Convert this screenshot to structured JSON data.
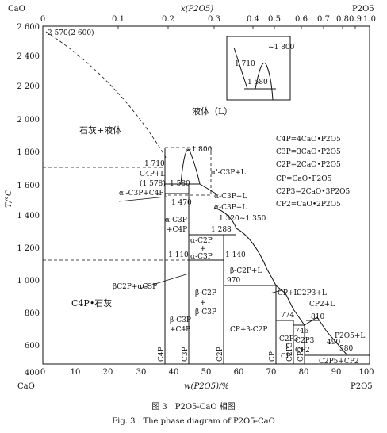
{
  "top_axis": {
    "label": "x(P2O5)",
    "left_label": "CaO",
    "right_label": "P2O5",
    "ticks": [
      "0",
      "0.1",
      "0.2",
      "0.3",
      "0.4",
      "0.5",
      "0.6",
      "0.7",
      "0.8",
      "0.9",
      "1.0"
    ]
  },
  "left_axis": {
    "label": "T/°C",
    "ticks": [
      "2 600",
      "2 400",
      "2 200",
      "2 000",
      "1 800",
      "1 600",
      "1 400",
      "1 200",
      "1 000",
      "800",
      "600",
      "400"
    ]
  },
  "bottom_axis": {
    "label": "w(P2O5)/%",
    "left_label": "CaO",
    "right_label": "P2O5",
    "ticks": [
      "0",
      "10",
      "20",
      "30",
      "40",
      "50",
      "60",
      "70",
      "80",
      "90",
      "100"
    ]
  },
  "labels": {
    "melt_point": "2 570(2 600)",
    "lime_liquid": "石灰+液体",
    "liquid": "液体（L）",
    "t1710": "1 710",
    "c4p_l": "C4P+L",
    "t1578": "(1 578)",
    "t1580": "1 580",
    "alpha_c3p_c4p": "α'-C3P+C4P",
    "t1470": "1 470",
    "t1800": "~1 800",
    "alpha_c3p_l1": "α'-C3P+L",
    "alpha_c3p_l2": "α-C3P+L",
    "alpha_c3p_l3": "α-C3P+L",
    "t1320": "1 320",
    "t1350": "~1 350",
    "t1288": "1 288",
    "alpha_c3p_c4p2": "α-C3P",
    "c4p_plus": "+C4P",
    "alpha_c2p": "α-C2P",
    "plus": "+",
    "alpha_c3p_b": "α-C3P",
    "t1110": "1 110",
    "t1140": "1 140",
    "beta_c2p_l": "β-C2P+L",
    "t970": "970",
    "bc2p_ac3p": "βC2P+αC3P",
    "c4p_lime": "C4P•石灰",
    "b_c2p": "β-C2P",
    "b_c3p": "β-C3P",
    "b_c3p2": "β-C3P",
    "c4p2": "+C4P",
    "cp_bc2p": "CP+β-C2P",
    "cp_l": "CP+L",
    "t774": "774",
    "c2p3_l": "C2P3+L",
    "cp2_l": "CP2+L",
    "t746": "746",
    "t810": "810",
    "c2p3": "C2P3",
    "plus2": "+",
    "cp": "CP",
    "c2p3_2": "C2P3",
    "cp2": "CP2",
    "t490": "490",
    "p2o5_l": "P2O5+L",
    "t580": "580",
    "c2p5_cp2": "C2P5+CP2",
    "v_c4p": "C4P",
    "v_c3p": "C3P",
    "v_c2p": "C2P",
    "v_cp": "CP",
    "v_c2p3": "C2P3",
    "v_cp2": "CP2"
  },
  "inset": {
    "t1800": "~1 800",
    "t1710": "1 710",
    "t1580": "1 580"
  },
  "legend": [
    "C4P=4CaO•P2O5",
    "C3P=3CaO•P2O5",
    "C2P=2CaO•P2O5",
    "CP=CaO•P2O5",
    "C2P3=2CaO•3P2O5",
    "CP2=CaO•2P2O5"
  ],
  "caption": {
    "cn": "图 3　P2O5-CaO 相图",
    "en": "Fig. 3　The phase diagram of P2O5-CaO"
  }
}
